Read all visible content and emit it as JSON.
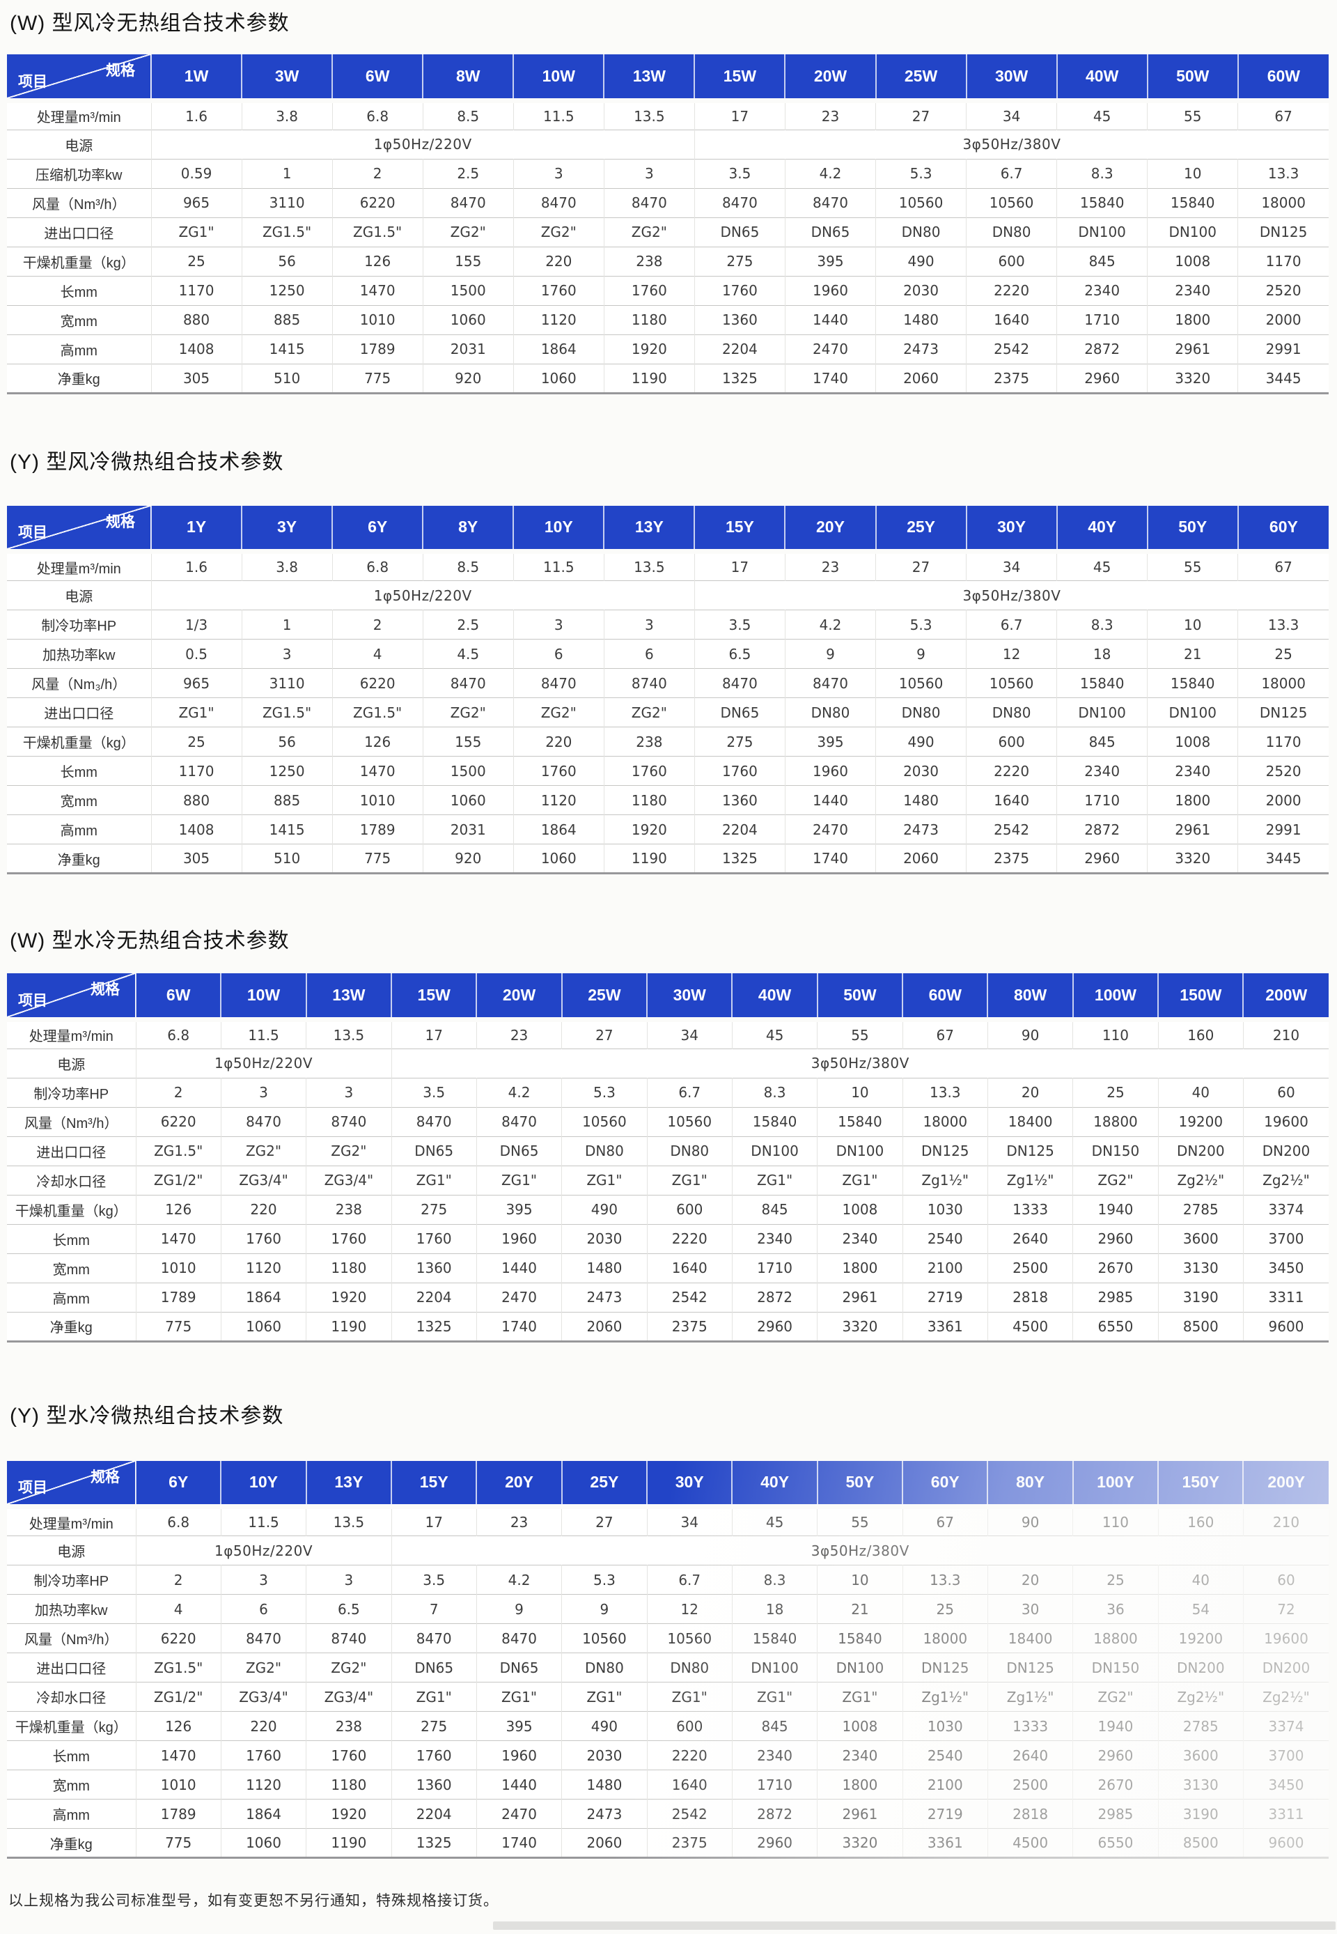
{
  "colors": {
    "header_blue": "#2244c7"
  },
  "corner": {
    "spec": "规格",
    "item": "项目"
  },
  "footer": "以上规格为我公司标准型号，如有变更恕不另行通知，特殊规格接订货。",
  "tables": [
    {
      "title": "(W) 型风冷无热组合技术参数",
      "columns": [
        "1W",
        "3W",
        "6W",
        "8W",
        "10W",
        "13W",
        "15W",
        "20W",
        "25W",
        "30W",
        "40W",
        "50W",
        "60W"
      ],
      "rows": [
        {
          "label": "处理量m³/min",
          "values": [
            "1.6",
            "3.8",
            "6.8",
            "8.5",
            "11.5",
            "13.5",
            "17",
            "23",
            "27",
            "34",
            "45",
            "55",
            "67"
          ]
        },
        {
          "label": "电源",
          "groups": [
            {
              "text": "1φ50Hz/220V",
              "span": 6
            },
            {
              "text": "3φ50Hz/380V",
              "span": 7
            }
          ]
        },
        {
          "label": "压缩机功率kw",
          "values": [
            "0.59",
            "1",
            "2",
            "2.5",
            "3",
            "3",
            "3.5",
            "4.2",
            "5.3",
            "6.7",
            "8.3",
            "10",
            "13.3"
          ]
        },
        {
          "label": "风量（Nm³/h）",
          "values": [
            "965",
            "3110",
            "6220",
            "8470",
            "8470",
            "8470",
            "8470",
            "8470",
            "10560",
            "10560",
            "15840",
            "15840",
            "18000"
          ]
        },
        {
          "label": "进出口口径",
          "values": [
            "ZG1\"",
            "ZG1.5\"",
            "ZG1.5\"",
            "ZG2\"",
            "ZG2\"",
            "ZG2\"",
            "DN65",
            "DN65",
            "DN80",
            "DN80",
            "DN100",
            "DN100",
            "DN125"
          ]
        },
        {
          "label": "干燥机重量（kg）",
          "values": [
            "25",
            "56",
            "126",
            "155",
            "220",
            "238",
            "275",
            "395",
            "490",
            "600",
            "845",
            "1008",
            "1170"
          ]
        },
        {
          "label": "长mm",
          "values": [
            "1170",
            "1250",
            "1470",
            "1500",
            "1760",
            "1760",
            "1760",
            "1960",
            "2030",
            "2220",
            "2340",
            "2340",
            "2520"
          ]
        },
        {
          "label": "宽mm",
          "values": [
            "880",
            "885",
            "1010",
            "1060",
            "1120",
            "1180",
            "1360",
            "1440",
            "1480",
            "1640",
            "1710",
            "1800",
            "2000"
          ]
        },
        {
          "label": "高mm",
          "values": [
            "1408",
            "1415",
            "1789",
            "2031",
            "1864",
            "1920",
            "2204",
            "2470",
            "2473",
            "2542",
            "2872",
            "2961",
            "2991"
          ]
        },
        {
          "label": "净重kg",
          "values": [
            "305",
            "510",
            "775",
            "920",
            "1060",
            "1190",
            "1325",
            "1740",
            "2060",
            "2375",
            "2960",
            "3320",
            "3445"
          ]
        }
      ]
    },
    {
      "title": "(Y) 型风冷微热组合技术参数",
      "columns": [
        "1Y",
        "3Y",
        "6Y",
        "8Y",
        "10Y",
        "13Y",
        "15Y",
        "20Y",
        "25Y",
        "30Y",
        "40Y",
        "50Y",
        "60Y"
      ],
      "rows": [
        {
          "label": "处理量m³/min",
          "values": [
            "1.6",
            "3.8",
            "6.8",
            "8.5",
            "11.5",
            "13.5",
            "17",
            "23",
            "27",
            "34",
            "45",
            "55",
            "67"
          ]
        },
        {
          "label": "电源",
          "groups": [
            {
              "text": "1φ50Hz/220V",
              "span": 6
            },
            {
              "text": "3φ50Hz/380V",
              "span": 7
            }
          ]
        },
        {
          "label": "制冷功率HP",
          "values": [
            "1/3",
            "1",
            "2",
            "2.5",
            "3",
            "3",
            "3.5",
            "4.2",
            "5.3",
            "6.7",
            "8.3",
            "10",
            "13.3"
          ]
        },
        {
          "label": "加热功率kw",
          "values": [
            "0.5",
            "3",
            "4",
            "4.5",
            "6",
            "6",
            "6.5",
            "9",
            "9",
            "12",
            "18",
            "21",
            "25"
          ]
        },
        {
          "label": "风量（Nm₃/h）",
          "values": [
            "965",
            "3110",
            "6220",
            "8470",
            "8470",
            "8740",
            "8470",
            "8470",
            "10560",
            "10560",
            "15840",
            "15840",
            "18000"
          ]
        },
        {
          "label": "进出口口径",
          "values": [
            "ZG1\"",
            "ZG1.5\"",
            "ZG1.5\"",
            "ZG2\"",
            "ZG2\"",
            "ZG2\"",
            "DN65",
            "DN80",
            "DN80",
            "DN80",
            "DN100",
            "DN100",
            "DN125"
          ]
        },
        {
          "label": "干燥机重量（kg）",
          "values": [
            "25",
            "56",
            "126",
            "155",
            "220",
            "238",
            "275",
            "395",
            "490",
            "600",
            "845",
            "1008",
            "1170"
          ]
        },
        {
          "label": "长mm",
          "values": [
            "1170",
            "1250",
            "1470",
            "1500",
            "1760",
            "1760",
            "1760",
            "1960",
            "2030",
            "2220",
            "2340",
            "2340",
            "2520"
          ]
        },
        {
          "label": "宽mm",
          "values": [
            "880",
            "885",
            "1010",
            "1060",
            "1120",
            "1180",
            "1360",
            "1440",
            "1480",
            "1640",
            "1710",
            "1800",
            "2000"
          ]
        },
        {
          "label": "高mm",
          "values": [
            "1408",
            "1415",
            "1789",
            "2031",
            "1864",
            "1920",
            "2204",
            "2470",
            "2473",
            "2542",
            "2872",
            "2961",
            "2991"
          ]
        },
        {
          "label": "净重kg",
          "values": [
            "305",
            "510",
            "775",
            "920",
            "1060",
            "1190",
            "1325",
            "1740",
            "2060",
            "2375",
            "2960",
            "3320",
            "3445"
          ]
        }
      ]
    },
    {
      "title": "(W) 型水冷无热组合技术参数",
      "columns": [
        "6W",
        "10W",
        "13W",
        "15W",
        "20W",
        "25W",
        "30W",
        "40W",
        "50W",
        "60W",
        "80W",
        "100W",
        "150W",
        "200W"
      ],
      "rows": [
        {
          "label": "处理量m³/min",
          "values": [
            "6.8",
            "11.5",
            "13.5",
            "17",
            "23",
            "27",
            "34",
            "45",
            "55",
            "67",
            "90",
            "110",
            "160",
            "210"
          ]
        },
        {
          "label": "电源",
          "groups": [
            {
              "text": "1φ50Hz/220V",
              "span": 3
            },
            {
              "text": "3φ50Hz/380V",
              "span": 11
            }
          ]
        },
        {
          "label": "制冷功率HP",
          "values": [
            "2",
            "3",
            "3",
            "3.5",
            "4.2",
            "5.3",
            "6.7",
            "8.3",
            "10",
            "13.3",
            "20",
            "25",
            "40",
            "60"
          ]
        },
        {
          "label": "风量（Nm³/h）",
          "values": [
            "6220",
            "8470",
            "8740",
            "8470",
            "8470",
            "10560",
            "10560",
            "15840",
            "15840",
            "18000",
            "18400",
            "18800",
            "19200",
            "19600"
          ]
        },
        {
          "label": "进出口口径",
          "values": [
            "ZG1.5\"",
            "ZG2\"",
            "ZG2\"",
            "DN65",
            "DN65",
            "DN80",
            "DN80",
            "DN100",
            "DN100",
            "DN125",
            "DN125",
            "DN150",
            "DN200",
            "DN200"
          ]
        },
        {
          "label": "冷却水口径",
          "values": [
            "ZG1/2\"",
            "ZG3/4\"",
            "ZG3/4\"",
            "ZG1\"",
            "ZG1\"",
            "ZG1\"",
            "ZG1\"",
            "ZG1\"",
            "ZG1\"",
            "Zg1½\"",
            "Zg1½\"",
            "ZG2\"",
            "Zg2½\"",
            "Zg2½\""
          ]
        },
        {
          "label": "干燥机重量（kg）",
          "values": [
            "126",
            "220",
            "238",
            "275",
            "395",
            "490",
            "600",
            "845",
            "1008",
            "1030",
            "1333",
            "1940",
            "2785",
            "3374"
          ]
        },
        {
          "label": "长mm",
          "values": [
            "1470",
            "1760",
            "1760",
            "1760",
            "1960",
            "2030",
            "2220",
            "2340",
            "2340",
            "2540",
            "2640",
            "2960",
            "3600",
            "3700"
          ]
        },
        {
          "label": "宽mm",
          "values": [
            "1010",
            "1120",
            "1180",
            "1360",
            "1440",
            "1480",
            "1640",
            "1710",
            "1800",
            "2100",
            "2500",
            "2670",
            "3130",
            "3450"
          ]
        },
        {
          "label": "高mm",
          "values": [
            "1789",
            "1864",
            "1920",
            "2204",
            "2470",
            "2473",
            "2542",
            "2872",
            "2961",
            "2719",
            "2818",
            "2985",
            "3190",
            "3311"
          ]
        },
        {
          "label": "净重kg",
          "values": [
            "775",
            "1060",
            "1190",
            "1325",
            "1740",
            "2060",
            "2375",
            "2960",
            "3320",
            "3361",
            "4500",
            "6550",
            "8500",
            "9600"
          ]
        }
      ]
    },
    {
      "title": "(Y) 型水冷微热组合技术参数",
      "columns": [
        "6Y",
        "10Y",
        "13Y",
        "15Y",
        "20Y",
        "25Y",
        "30Y",
        "40Y",
        "50Y",
        "60Y",
        "80Y",
        "100Y",
        "150Y",
        "200Y"
      ],
      "rows": [
        {
          "label": "处理量m³/min",
          "values": [
            "6.8",
            "11.5",
            "13.5",
            "17",
            "23",
            "27",
            "34",
            "45",
            "55",
            "67",
            "90",
            "110",
            "160",
            "210"
          ]
        },
        {
          "label": "电源",
          "groups": [
            {
              "text": "1φ50Hz/220V",
              "span": 3
            },
            {
              "text": "3φ50Hz/380V",
              "span": 11
            }
          ]
        },
        {
          "label": "制冷功率HP",
          "values": [
            "2",
            "3",
            "3",
            "3.5",
            "4.2",
            "5.3",
            "6.7",
            "8.3",
            "10",
            "13.3",
            "20",
            "25",
            "40",
            "60"
          ]
        },
        {
          "label": "加热功率kw",
          "values": [
            "4",
            "6",
            "6.5",
            "7",
            "9",
            "9",
            "12",
            "18",
            "21",
            "25",
            "30",
            "36",
            "54",
            "72"
          ]
        },
        {
          "label": "风量（Nm³/h）",
          "values": [
            "6220",
            "8470",
            "8740",
            "8470",
            "8470",
            "10560",
            "10560",
            "15840",
            "15840",
            "18000",
            "18400",
            "18800",
            "19200",
            "19600"
          ]
        },
        {
          "label": "进出口口径",
          "values": [
            "ZG1.5\"",
            "ZG2\"",
            "ZG2\"",
            "DN65",
            "DN65",
            "DN80",
            "DN80",
            "DN100",
            "DN100",
            "DN125",
            "DN125",
            "DN150",
            "DN200",
            "DN200"
          ]
        },
        {
          "label": "冷却水口径",
          "values": [
            "ZG1/2\"",
            "ZG3/4\"",
            "ZG3/4\"",
            "ZG1\"",
            "ZG1\"",
            "ZG1\"",
            "ZG1\"",
            "ZG1\"",
            "ZG1\"",
            "Zg1½\"",
            "Zg1½\"",
            "ZG2\"",
            "Zg2½\"",
            "Zg2½\""
          ]
        },
        {
          "label": "干燥机重量（kg）",
          "values": [
            "126",
            "220",
            "238",
            "275",
            "395",
            "490",
            "600",
            "845",
            "1008",
            "1030",
            "1333",
            "1940",
            "2785",
            "3374"
          ]
        },
        {
          "label": "长mm",
          "values": [
            "1470",
            "1760",
            "1760",
            "1760",
            "1960",
            "2030",
            "2220",
            "2340",
            "2340",
            "2540",
            "2640",
            "2960",
            "3600",
            "3700"
          ]
        },
        {
          "label": "宽mm",
          "values": [
            "1010",
            "1120",
            "1180",
            "1360",
            "1440",
            "1480",
            "1640",
            "1710",
            "1800",
            "2100",
            "2500",
            "2670",
            "3130",
            "3450"
          ]
        },
        {
          "label": "高mm",
          "values": [
            "1789",
            "1864",
            "1920",
            "2204",
            "2470",
            "2473",
            "2542",
            "2872",
            "2961",
            "2719",
            "2818",
            "2985",
            "3190",
            "3311"
          ]
        },
        {
          "label": "净重kg",
          "values": [
            "775",
            "1060",
            "1190",
            "1325",
            "1740",
            "2060",
            "2375",
            "2960",
            "3320",
            "3361",
            "4500",
            "6550",
            "8500",
            "9600"
          ]
        }
      ]
    }
  ]
}
